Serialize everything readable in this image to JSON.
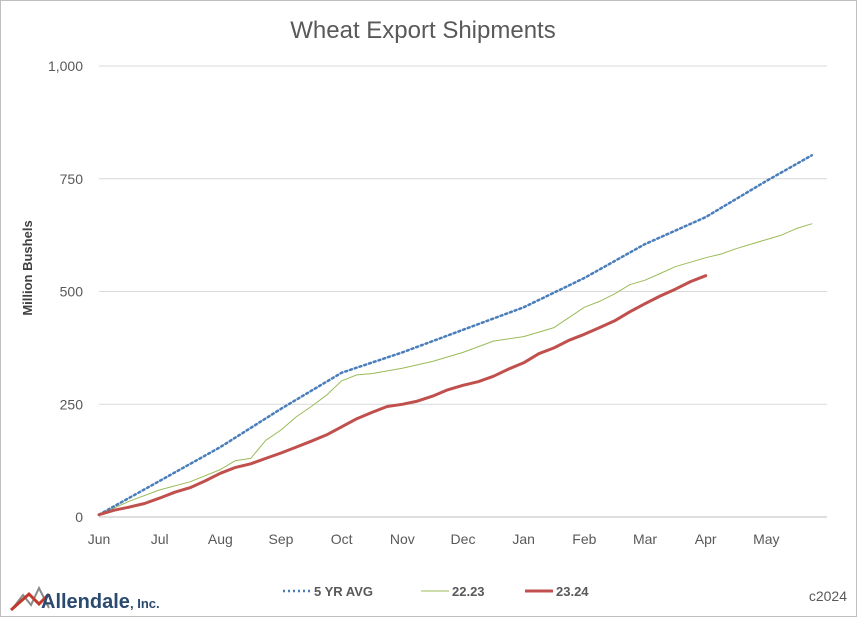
{
  "chart_data": {
    "type": "line",
    "title": "Wheat Export Shipments",
    "ylabel": "Million Bushels",
    "xlabel": "",
    "ylim": [
      0,
      1000
    ],
    "yticks": [
      0,
      250,
      500,
      750,
      1000
    ],
    "ytick_labels": [
      "0",
      "250",
      "500",
      "750",
      "1,000"
    ],
    "categories": [
      "Jun",
      "Jul",
      "Aug",
      "Sep",
      "Oct",
      "Nov",
      "Dec",
      "Jan",
      "Feb",
      "Mar",
      "Apr",
      "May"
    ],
    "x_note_months": 12,
    "series": [
      {
        "name": "5 YR AVG",
        "color": "#4a7ebb",
        "style": "dotted",
        "x": [
          0,
          1,
          2,
          3,
          4,
          5,
          6,
          7,
          8,
          9,
          10,
          11,
          11.75
        ],
        "values": [
          5,
          80,
          155,
          240,
          320,
          365,
          415,
          465,
          530,
          605,
          665,
          745,
          802
        ]
      },
      {
        "name": "22.23",
        "color": "#9bbb59",
        "style": "thin",
        "x": [
          0,
          0.5,
          1,
          1.5,
          2,
          2.25,
          2.5,
          2.75,
          3,
          3.25,
          3.5,
          3.75,
          4,
          4.25,
          4.5,
          5,
          5.5,
          6,
          6.5,
          7,
          7.5,
          8,
          8.25,
          8.5,
          8.75,
          9,
          9.25,
          9.5,
          9.75,
          10,
          10.25,
          10.5,
          10.75,
          11,
          11.25,
          11.5,
          11.75
        ],
        "values": [
          5,
          35,
          60,
          78,
          105,
          125,
          130,
          170,
          193,
          222,
          245,
          270,
          302,
          315,
          318,
          330,
          345,
          365,
          390,
          400,
          420,
          465,
          478,
          495,
          515,
          525,
          540,
          555,
          565,
          575,
          583,
          595,
          605,
          615,
          625,
          640,
          650
        ]
      },
      {
        "name": "23.24",
        "color": "#c0504d",
        "style": "thick",
        "x": [
          0,
          0.25,
          0.5,
          0.75,
          1,
          1.25,
          1.5,
          1.75,
          2,
          2.25,
          2.5,
          2.75,
          3,
          3.25,
          3.5,
          3.75,
          4,
          4.25,
          4.5,
          4.75,
          5,
          5.25,
          5.5,
          5.75,
          6,
          6.25,
          6.5,
          6.75,
          7,
          7.25,
          7.5,
          7.75,
          8,
          8.25,
          8.5,
          8.75,
          9,
          9.25,
          9.5,
          9.75,
          10
        ],
        "values": [
          5,
          15,
          22,
          30,
          42,
          55,
          65,
          80,
          97,
          110,
          118,
          130,
          142,
          155,
          168,
          182,
          200,
          218,
          232,
          245,
          250,
          257,
          268,
          282,
          292,
          300,
          312,
          328,
          342,
          362,
          375,
          392,
          405,
          420,
          435,
          455,
          473,
          490,
          505,
          522,
          535
        ]
      }
    ],
    "legend_position": "bottom",
    "grid": "horizontal"
  },
  "branding": {
    "logo_name": "Allendale",
    "logo_suffix": ", Inc.",
    "copyright": "c2024"
  }
}
